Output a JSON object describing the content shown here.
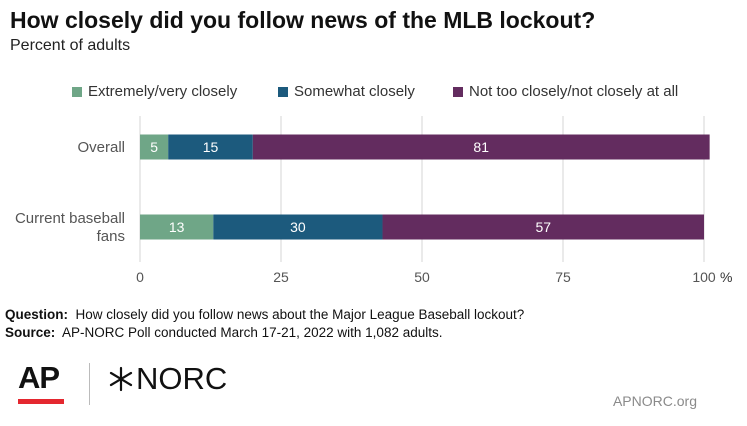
{
  "title": "How closely did you follow news of the MLB lockout?",
  "subtitle": "Percent of adults",
  "colors": {
    "extremely": "#6fa687",
    "somewhat": "#1c5a7d",
    "not_too": "#632c5f",
    "axis_text": "#555555",
    "grid": "#d4d4d4",
    "ap_red": "#e4272f"
  },
  "chart_data": {
    "type": "bar",
    "orientation": "horizontal",
    "stacked": true,
    "categories": [
      [
        "Overall"
      ],
      [
        "Current baseball",
        "fans"
      ]
    ],
    "series": [
      {
        "name": "Extremely/very closely",
        "values": [
          5,
          13
        ],
        "color": "#6fa687"
      },
      {
        "name": "Somewhat closely",
        "values": [
          15,
          30
        ],
        "color": "#1c5a7d"
      },
      {
        "name": "Not too closely/not closely at all",
        "values": [
          81,
          57
        ],
        "color": "#632c5f"
      }
    ],
    "xlim": [
      0,
      100
    ],
    "xticks": [
      0,
      25,
      50,
      75,
      100
    ],
    "xtick_suffix": "%",
    "grid": true,
    "legend_position": "top"
  },
  "notes": {
    "question_label": "Question:",
    "question_text": "How closely did you follow news about the Major League Baseball lockout?",
    "source_label": "Source:",
    "source_text": "AP-NORC Poll conducted March 17-21, 2022 with 1,082 adults."
  },
  "footer": {
    "ap_logo": "AP",
    "norc_logo": "NORC",
    "site": "APNORC.org"
  }
}
